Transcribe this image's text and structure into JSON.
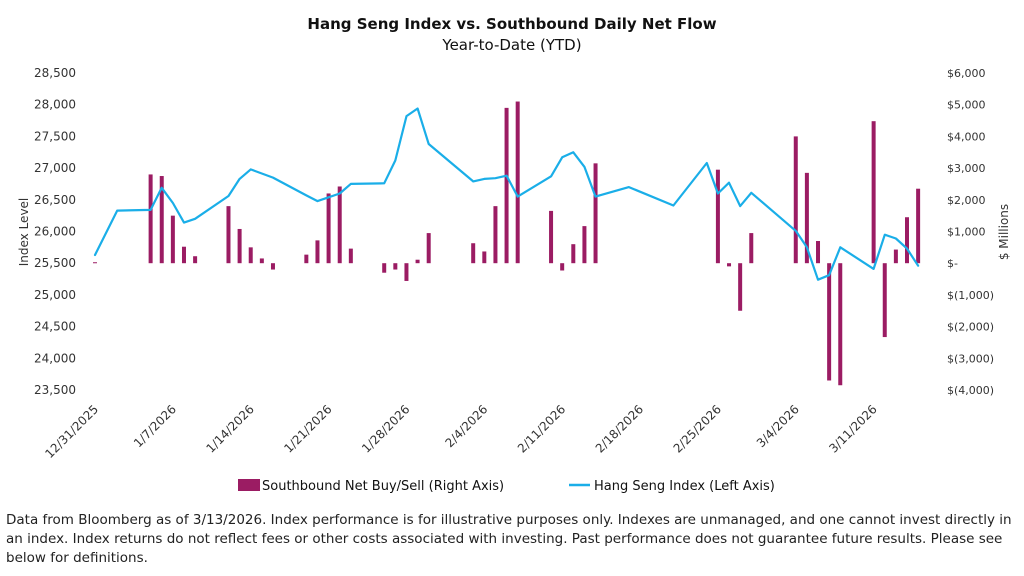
{
  "chart_data": {
    "type": "bar+line",
    "title": "Hang Seng Index vs. Southbound Daily Net Flow",
    "subtitle": "Year-to-Date (YTD)",
    "ylabel_left": "Index Level",
    "ylabel_right": "$ Millions",
    "ylim_left": [
      23500,
      28500
    ],
    "ylim_right": [
      -4000,
      6000
    ],
    "yticks_left": [
      "28,500",
      "28,000",
      "27,500",
      "27,000",
      "26,500",
      "26,000",
      "25,500",
      "25,000",
      "24,500",
      "24,000",
      "23,500"
    ],
    "yticks_right": [
      "$6,000",
      "$5,000",
      "$4,000",
      "$3,000",
      "$2,000",
      "$1,000",
      "$-",
      "$(1,000)",
      "$(2,000)",
      "$(3,000)",
      "$(4,000)"
    ],
    "xticks": [
      "12/31/2025",
      "1/7/2026",
      "1/14/2026",
      "1/21/2026",
      "1/28/2026",
      "2/4/2026",
      "2/11/2026",
      "2/18/2026",
      "2/25/2026",
      "3/4/2026",
      "3/11/2026"
    ],
    "x_domain": [
      0,
      73
    ],
    "series": [
      {
        "name": "Southbound Net Buy/Sell (Right Axis)",
        "type": "bar",
        "axis": "right",
        "color": "#9b1c63",
        "points": [
          {
            "x": 0,
            "value": 30
          },
          {
            "x": 5,
            "value": 2800
          },
          {
            "x": 6,
            "value": 2750
          },
          {
            "x": 7,
            "value": 1500
          },
          {
            "x": 8,
            "value": 520
          },
          {
            "x": 9,
            "value": 220
          },
          {
            "x": 12,
            "value": 1800
          },
          {
            "x": 13,
            "value": 1080
          },
          {
            "x": 14,
            "value": 500
          },
          {
            "x": 15,
            "value": 150
          },
          {
            "x": 16,
            "value": -200
          },
          {
            "x": 19,
            "value": 270
          },
          {
            "x": 20,
            "value": 720
          },
          {
            "x": 21,
            "value": 2200
          },
          {
            "x": 22,
            "value": 2420
          },
          {
            "x": 23,
            "value": 460
          },
          {
            "x": 26,
            "value": -300
          },
          {
            "x": 27,
            "value": -200
          },
          {
            "x": 28,
            "value": -560
          },
          {
            "x": 29,
            "value": 110
          },
          {
            "x": 30,
            "value": 950
          },
          {
            "x": 34,
            "value": 630
          },
          {
            "x": 35,
            "value": 370
          },
          {
            "x": 36,
            "value": 1800
          },
          {
            "x": 37,
            "value": 4900
          },
          {
            "x": 38,
            "value": 5100
          },
          {
            "x": 41,
            "value": 1650
          },
          {
            "x": 42,
            "value": -230
          },
          {
            "x": 43,
            "value": 600
          },
          {
            "x": 44,
            "value": 1170
          },
          {
            "x": 45,
            "value": 3150
          },
          {
            "x": 56,
            "value": 2950
          },
          {
            "x": 57,
            "value": -100
          },
          {
            "x": 58,
            "value": -1500
          },
          {
            "x": 59,
            "value": 950
          },
          {
            "x": 63,
            "value": 4000
          },
          {
            "x": 64,
            "value": 2850
          },
          {
            "x": 65,
            "value": 700
          },
          {
            "x": 66,
            "value": -3700
          },
          {
            "x": 67,
            "value": -3850
          },
          {
            "x": 70,
            "value": 4480
          },
          {
            "x": 71,
            "value": -2330
          },
          {
            "x": 72,
            "value": 430
          },
          {
            "x": 73,
            "value": 1450
          },
          {
            "x": 74,
            "value": 2350
          }
        ]
      },
      {
        "name": "Hang Seng Index (Left Axis)",
        "type": "line",
        "axis": "left",
        "color": "#1aaee8",
        "points": [
          {
            "x": 0,
            "value": 25630
          },
          {
            "x": 2,
            "value": 26330
          },
          {
            "x": 5,
            "value": 26340
          },
          {
            "x": 6,
            "value": 26690
          },
          {
            "x": 7,
            "value": 26450
          },
          {
            "x": 8,
            "value": 26140
          },
          {
            "x": 9,
            "value": 26200
          },
          {
            "x": 12,
            "value": 26560
          },
          {
            "x": 13,
            "value": 26830
          },
          {
            "x": 14,
            "value": 26980
          },
          {
            "x": 16,
            "value": 26850
          },
          {
            "x": 19,
            "value": 26570
          },
          {
            "x": 20,
            "value": 26480
          },
          {
            "x": 21,
            "value": 26540
          },
          {
            "x": 22,
            "value": 26600
          },
          {
            "x": 23,
            "value": 26750
          },
          {
            "x": 26,
            "value": 26760
          },
          {
            "x": 27,
            "value": 27120
          },
          {
            "x": 28,
            "value": 27820
          },
          {
            "x": 29,
            "value": 27940
          },
          {
            "x": 30,
            "value": 27380
          },
          {
            "x": 34,
            "value": 26790
          },
          {
            "x": 35,
            "value": 26830
          },
          {
            "x": 36,
            "value": 26840
          },
          {
            "x": 37,
            "value": 26880
          },
          {
            "x": 38,
            "value": 26550
          },
          {
            "x": 41,
            "value": 26870
          },
          {
            "x": 42,
            "value": 27170
          },
          {
            "x": 43,
            "value": 27250
          },
          {
            "x": 44,
            "value": 27020
          },
          {
            "x": 45,
            "value": 26550
          },
          {
            "x": 48,
            "value": 26700
          },
          {
            "x": 52,
            "value": 26410
          },
          {
            "x": 55,
            "value": 27080
          },
          {
            "x": 56,
            "value": 26600
          },
          {
            "x": 57,
            "value": 26770
          },
          {
            "x": 58,
            "value": 26400
          },
          {
            "x": 59,
            "value": 26610
          },
          {
            "x": 63,
            "value": 26010
          },
          {
            "x": 64,
            "value": 25750
          },
          {
            "x": 65,
            "value": 25240
          },
          {
            "x": 66,
            "value": 25310
          },
          {
            "x": 67,
            "value": 25750
          },
          {
            "x": 70,
            "value": 25410
          },
          {
            "x": 71,
            "value": 25950
          },
          {
            "x": 72,
            "value": 25890
          },
          {
            "x": 73,
            "value": 25730
          },
          {
            "x": 74,
            "value": 25460
          }
        ]
      }
    ],
    "legend": [
      "Southbound Net Buy/Sell (Right Axis)",
      "Hang Seng Index (Left Axis)"
    ],
    "legend_position": "bottom"
  },
  "footnote": "Data from Bloomberg as of 3/13/2026. Index performance is for illustrative purposes only. Indexes are unmanaged, and one cannot invest directly in an index. Index returns do not reflect fees or other costs associated with investing. Past performance does not guarantee future results. Please see below for definitions."
}
